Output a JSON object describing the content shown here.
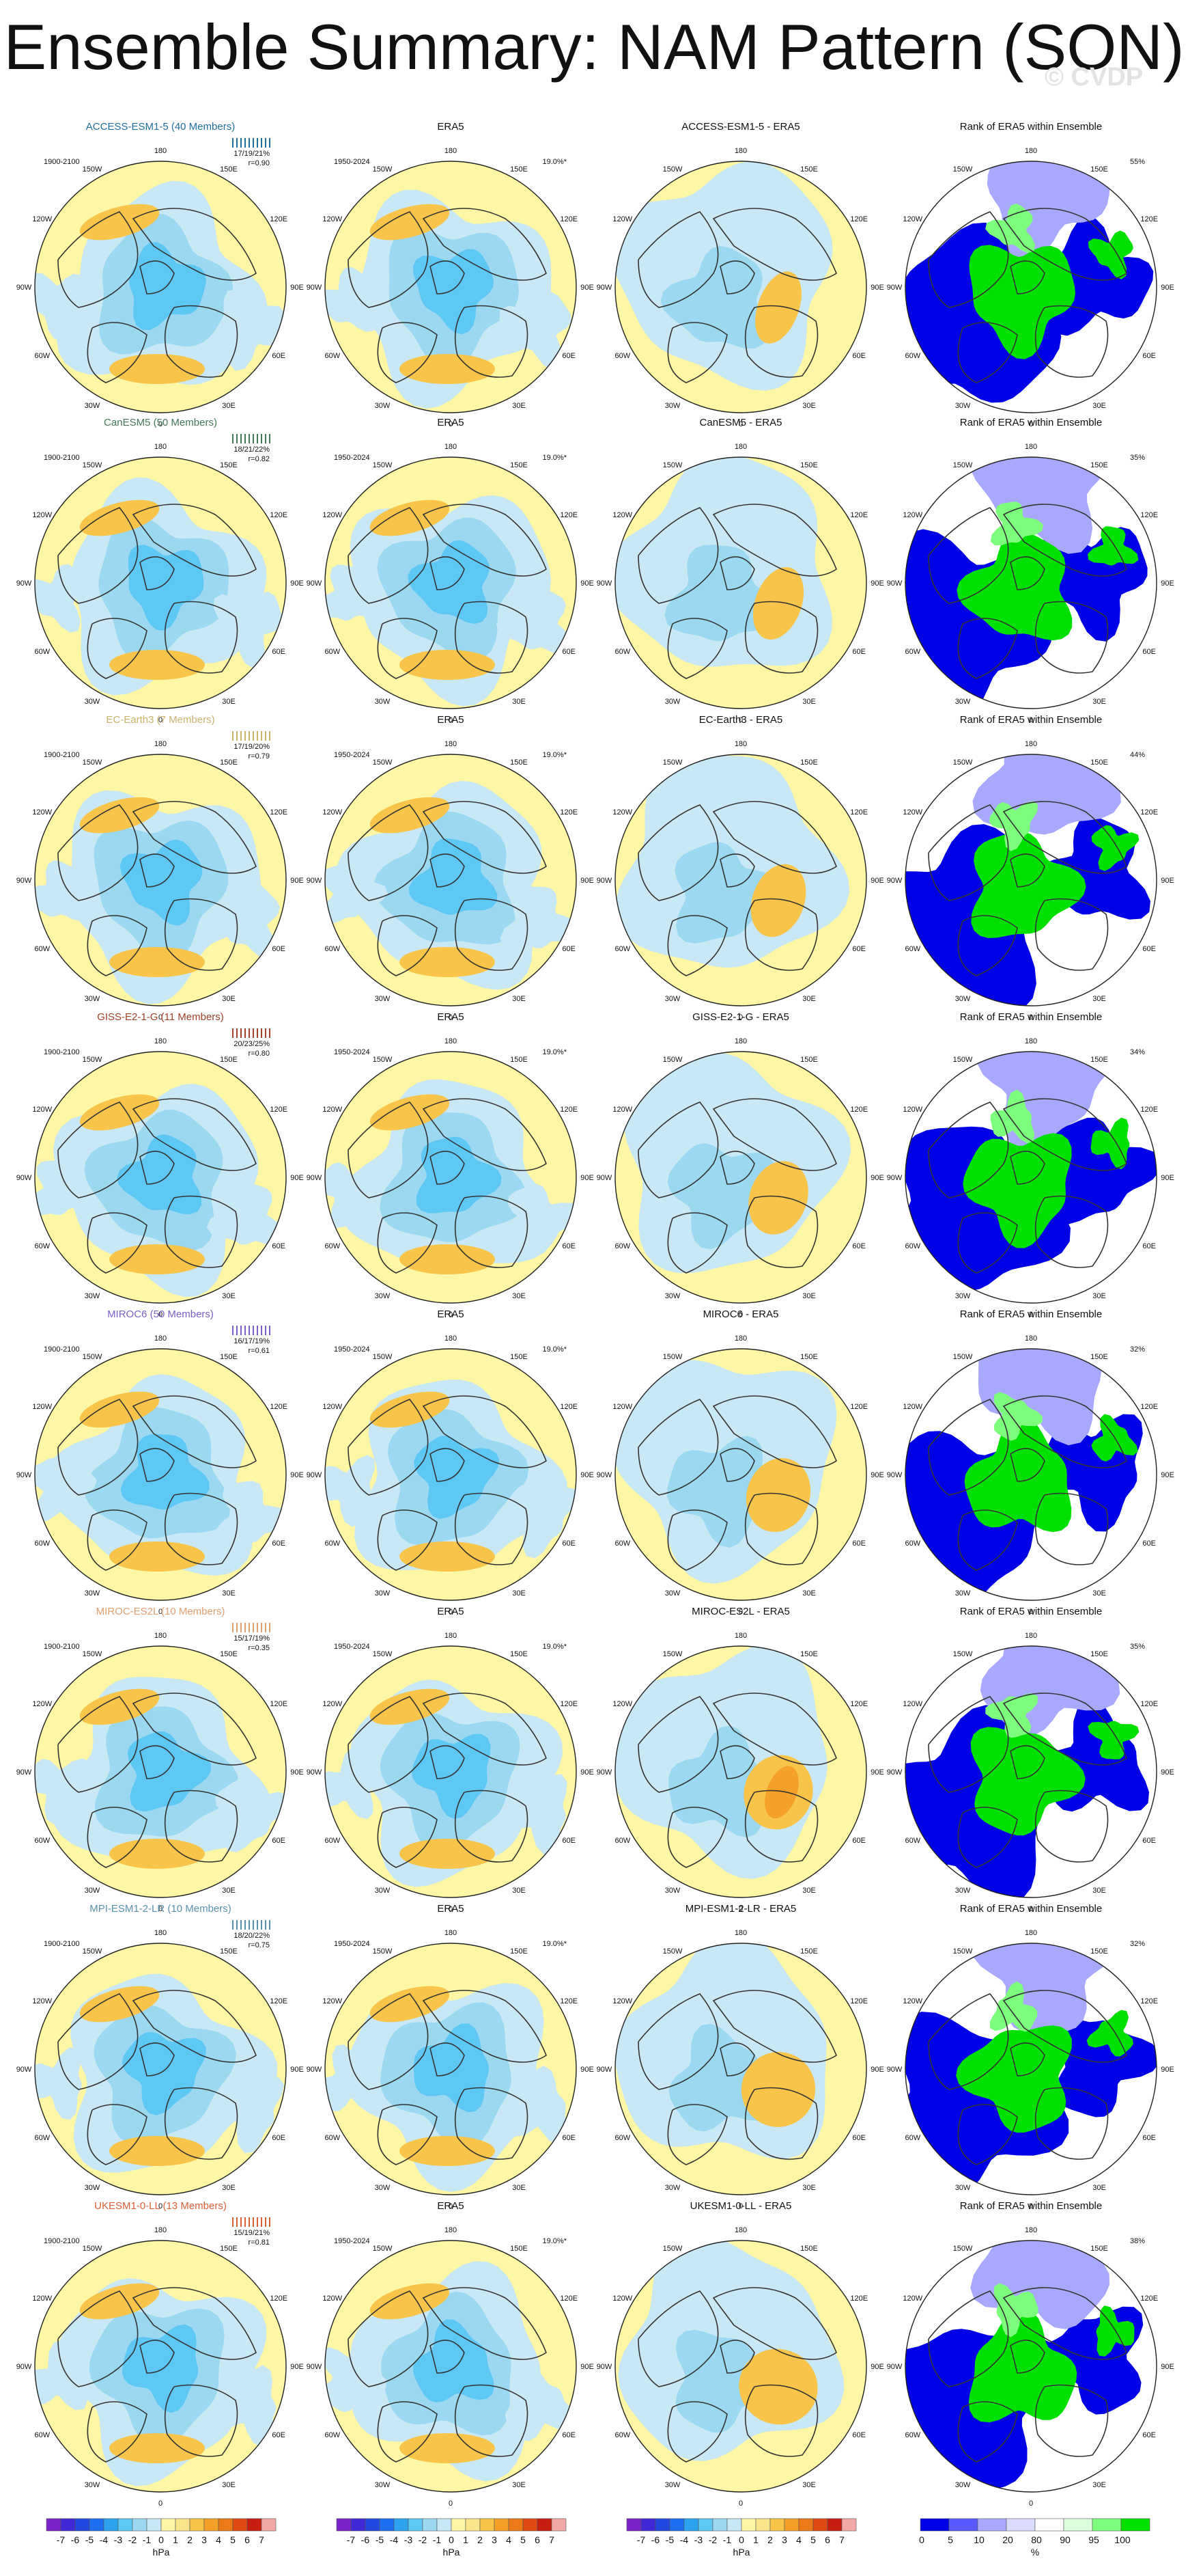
{
  "title": "Ensemble Summary: NAM Pattern (SON)",
  "watermark": "© CVDP",
  "colors": {
    "model_text": [
      "#1f6e9c",
      "#447a58",
      "#c8b46c",
      "#a0412b",
      "#7d5fc8",
      "#e0a070",
      "#5a92ab",
      "#d9603a"
    ],
    "rank_colors": [
      "#0000e6",
      "#5a5aff",
      "#a8a8ff",
      "#dcdcff",
      "#ffffff",
      "#dcffdc",
      "#7dff7d",
      "#00e000"
    ],
    "hpa_colors": [
      "#7a23c8",
      "#4028d6",
      "#2248e0",
      "#1e6ef0",
      "#2da3f0",
      "#5ec8f5",
      "#9cd8f0",
      "#c9e8f5",
      "#fdf7a6",
      "#fbe58a",
      "#f8c44a",
      "#f5a028",
      "#ec7a18",
      "#e04a14",
      "#c81e12",
      "#f3a8a8"
    ]
  },
  "rows": [
    {
      "model_title": "ACCESS-ESM1-5 (40 Members)",
      "model_period": "1900-2100",
      "stats": "17/19/21%",
      "rval": "r=0.90",
      "obs_title": "ERA5",
      "obs_period": "1950-2024",
      "obs_pct": "19.0%*",
      "diff_title": "ACCESS-ESM1-5 - ERA5",
      "rank_title": "Rank of ERA5 within Ensemble",
      "rank_pct": "55%"
    },
    {
      "model_title": "CanESM5 (50 Members)",
      "model_period": "1900-2100",
      "stats": "18/21/22%",
      "rval": "r=0.82",
      "obs_title": "ERA5",
      "obs_period": "1950-2024",
      "obs_pct": "19.0%*",
      "diff_title": "CanESM5 - ERA5",
      "rank_title": "Rank of ERA5 within Ensemble",
      "rank_pct": "35%"
    },
    {
      "model_title": "EC-Earth3 (7 Members)",
      "model_period": "1900-2100",
      "stats": "17/19/20%",
      "rval": "r=0.79",
      "obs_title": "ERA5",
      "obs_period": "1950-2024",
      "obs_pct": "19.0%*",
      "diff_title": "EC-Earth3 - ERA5",
      "rank_title": "Rank of ERA5 within Ensemble",
      "rank_pct": "44%"
    },
    {
      "model_title": "GISS-E2-1-G (11 Members)",
      "model_period": "1900-2100",
      "stats": "20/23/25%",
      "rval": "r=0.80",
      "obs_title": "ERA5",
      "obs_period": "1950-2024",
      "obs_pct": "19.0%*",
      "diff_title": "GISS-E2-1-G - ERA5",
      "rank_title": "Rank of ERA5 within Ensemble",
      "rank_pct": "34%"
    },
    {
      "model_title": "MIROC6 (50 Members)",
      "model_period": "1900-2100",
      "stats": "16/17/19%",
      "rval": "r=0.61",
      "obs_title": "ERA5",
      "obs_period": "1950-2024",
      "obs_pct": "19.0%*",
      "diff_title": "MIROC6 - ERA5",
      "rank_title": "Rank of ERA5 within Ensemble",
      "rank_pct": "32%"
    },
    {
      "model_title": "MIROC-ES2L (10 Members)",
      "model_period": "1900-2100",
      "stats": "15/17/19%",
      "rval": "r=0.35",
      "obs_title": "ERA5",
      "obs_period": "1950-2024",
      "obs_pct": "19.0%*",
      "diff_title": "MIROC-ES2L - ERA5",
      "rank_title": "Rank of ERA5 within Ensemble",
      "rank_pct": "35%"
    },
    {
      "model_title": "MPI-ESM1-2-LR (10 Members)",
      "model_period": "1900-2100",
      "stats": "18/20/22%",
      "rval": "r=0.75",
      "obs_title": "ERA5",
      "obs_period": "1950-2024",
      "obs_pct": "19.0%*",
      "diff_title": "MPI-ESM1-2-LR - ERA5",
      "rank_title": "Rank of ERA5 within Ensemble",
      "rank_pct": "32%"
    },
    {
      "model_title": "UKESM1-0-LL (13 Members)",
      "model_period": "1900-2100",
      "stats": "15/19/21%",
      "rval": "r=0.81",
      "obs_title": "ERA5",
      "obs_period": "1950-2024",
      "obs_pct": "19.0%*",
      "diff_title": "UKESM1-0-LL - ERA5",
      "rank_title": "Rank of ERA5 within Ensemble",
      "rank_pct": "38%"
    }
  ],
  "lon_labels": [
    "180",
    "150E",
    "120E",
    "90E",
    "60E",
    "30E",
    "0",
    "30W",
    "60W",
    "90W",
    "120W",
    "150W"
  ],
  "chart_data": {
    "type": "heatmap",
    "colorbar_hpa": {
      "ticks": [
        "-7",
        "-6",
        "-5",
        "-4",
        "-3",
        "-2",
        "-1",
        "0",
        "1",
        "2",
        "3",
        "4",
        "5",
        "6",
        "7"
      ],
      "unit": "hPa"
    },
    "colorbar_rank": {
      "ticks": [
        "0",
        "5",
        "10",
        "20",
        "80",
        "90",
        "95",
        "100"
      ],
      "unit": "%"
    }
  }
}
